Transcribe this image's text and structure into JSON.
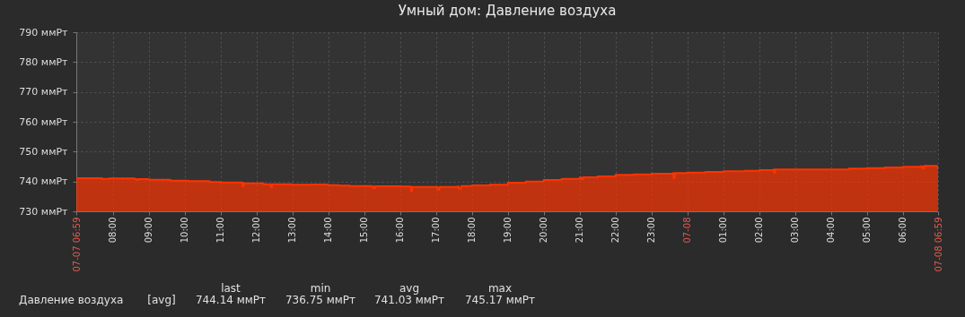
{
  "chart_data": {
    "type": "area",
    "title": "Умный дом: Давление воздуха",
    "x": [
      "--07-07T06:59",
      "--07-07T07:42",
      "--07-07T07:54",
      "--07-07T08:36",
      "--07-07T08:39",
      "--07-07T08:42",
      "--07-07T09:00",
      "--07-07T09:36",
      "--07-07T10:06",
      "--07-07T10:42",
      "--07-07T11:00",
      "--07-07T11:36",
      "--07-07T11:37",
      "--07-07T11:39",
      "--07-07T12:12",
      "--07-07T12:24",
      "--07-07T12:26",
      "--07-07T13:00",
      "--07-07T13:30",
      "--07-07T14:00",
      "--07-07T14:18",
      "--07-07T14:36",
      "--07-07T15:12",
      "--07-07T15:15",
      "--07-07T15:18",
      "--07-07T16:00",
      "--07-07T16:18",
      "--07-07T16:20",
      "--07-07T17:00",
      "--07-07T17:03",
      "--07-07T17:06",
      "--07-07T17:36",
      "--07-07T17:38",
      "--07-07T17:42",
      "--07-07T18:00",
      "--07-07T18:30",
      "--07-07T19:00",
      "--07-07T19:30",
      "--07-07T20:00",
      "--07-07T20:30",
      "--07-07T21:00",
      "--07-07T21:03",
      "--07-07T21:06",
      "--07-07T21:30",
      "--07-07T22:00",
      "--07-07T22:30",
      "--07-07T23:00",
      "--07-07T23:36",
      "--07-07T23:37",
      "--07-07T23:39",
      "--07-08T00:00",
      "--07-08T00:30",
      "--07-08T01:00",
      "--07-08T01:36",
      "--07-08T02:00",
      "--07-08T02:24",
      "--07-08T02:25",
      "--07-08T02:27",
      "--07-08T03:00",
      "--07-08T04:00",
      "--07-08T04:30",
      "--07-08T05:00",
      "--07-08T05:30",
      "--07-08T06:00",
      "--07-08T06:30",
      "--07-08T06:33",
      "--07-08T06:36",
      "--07-08T06:57",
      "--07-08T06:59"
    ],
    "series": [
      {
        "name": "Давление воздуха",
        "color": "#ff3300",
        "values": [
          741.1,
          740.9,
          741.0,
          740.9,
          740.5,
          740.8,
          740.6,
          740.3,
          740.1,
          739.8,
          739.7,
          739.5,
          738.5,
          739.4,
          739.1,
          738.1,
          739.1,
          738.9,
          739.0,
          738.8,
          738.6,
          738.5,
          738.4,
          737.7,
          738.4,
          738.3,
          736.8,
          738.2,
          738.1,
          737.3,
          738.2,
          738.3,
          737.6,
          738.5,
          738.7,
          738.9,
          739.6,
          740.0,
          740.5,
          740.9,
          741.3,
          740.8,
          741.4,
          741.7,
          742.2,
          742.4,
          742.6,
          742.8,
          741.2,
          742.8,
          743.0,
          743.2,
          743.4,
          743.6,
          743.8,
          744.0,
          743.0,
          744.0,
          744.0,
          744.0,
          744.3,
          744.5,
          744.7,
          744.9,
          745.1,
          744.4,
          745.2,
          745.1,
          744.1
        ]
      }
    ],
    "xlim": [
      "--07-07T06:59",
      "--07-08T06:59"
    ],
    "xticks": [
      {
        "value": "--07-07T06:59",
        "label": "07-07 06:59"
      },
      {
        "value": "--07-07T08:00",
        "label": "08:00"
      },
      {
        "value": "--07-07T09:00",
        "label": "09:00"
      },
      {
        "value": "--07-07T10:00",
        "label": "10:00"
      },
      {
        "value": "--07-07T11:00",
        "label": "11:00"
      },
      {
        "value": "--07-07T12:00",
        "label": "12:00"
      },
      {
        "value": "--07-07T13:00",
        "label": "13:00"
      },
      {
        "value": "--07-07T14:00",
        "label": "14:00"
      },
      {
        "value": "--07-07T15:00",
        "label": "15:00"
      },
      {
        "value": "--07-07T16:00",
        "label": "16:00"
      },
      {
        "value": "--07-07T17:00",
        "label": "17:00"
      },
      {
        "value": "--07-07T18:00",
        "label": "18:00"
      },
      {
        "value": "--07-07T19:00",
        "label": "19:00"
      },
      {
        "value": "--07-07T20:00",
        "label": "20:00"
      },
      {
        "value": "--07-07T21:00",
        "label": "21:00"
      },
      {
        "value": "--07-07T22:00",
        "label": "22:00"
      },
      {
        "value": "--07-07T23:00",
        "label": "23:00"
      },
      {
        "value": "--07-08T00:00",
        "label": "07-08"
      },
      {
        "value": "--07-08T01:00",
        "label": "01:00"
      },
      {
        "value": "--07-08T02:00",
        "label": "02:00"
      },
      {
        "value": "--07-08T03:00",
        "label": "03:00"
      },
      {
        "value": "--07-08T04:00",
        "label": "04:00"
      },
      {
        "value": "--07-08T05:00",
        "label": "05:00"
      },
      {
        "value": "--07-08T06:00",
        "label": "06:00"
      },
      {
        "value": "--07-08T06:59",
        "label": "07-08 06:59"
      }
    ],
    "ylim": [
      730,
      790
    ],
    "yticks": [
      {
        "value": 730,
        "label": "730 ммРт"
      },
      {
        "value": 740,
        "label": "740 ммРт"
      },
      {
        "value": 750,
        "label": "750 ммРт"
      },
      {
        "value": 760,
        "label": "760 ммРт"
      },
      {
        "value": 770,
        "label": "770 ммРт"
      },
      {
        "value": 780,
        "label": "780 ммРт"
      },
      {
        "value": 790,
        "label": "790 ммРт"
      }
    ],
    "grid": true,
    "legend": "bottom left",
    "annotations": [
      "[avg]",
      "last",
      "min",
      "avg",
      "max",
      "744.14 ммРт",
      "736.75 ммРт",
      "741.03 ммРт",
      "745.17 ммРт"
    ]
  }
}
